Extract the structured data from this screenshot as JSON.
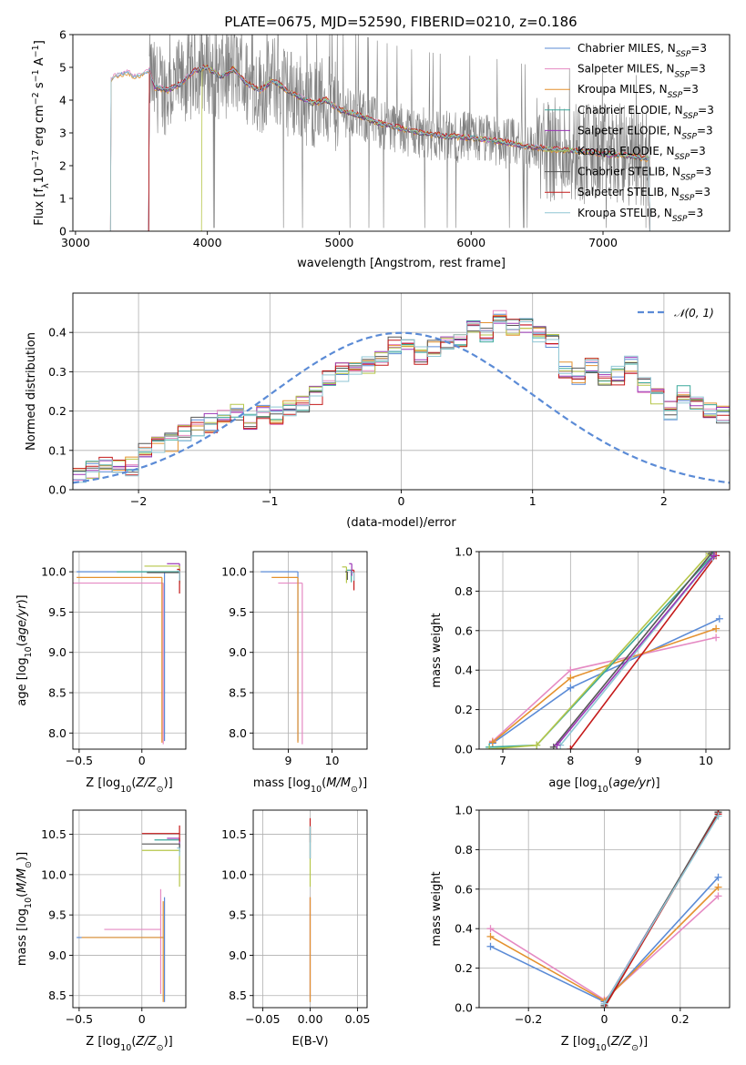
{
  "title": "PLATE=0675, MJD=52590, FIBERID=0210, z=0.186",
  "colors": {
    "chabrier_miles": "#5b8bd6",
    "salpeter_miles": "#e58ac3",
    "kroupa_miles": "#e4912e",
    "chabrier_elodie": "#3aa89b",
    "salpeter_elodie": "#9a35b5",
    "kroupa_elodie": "#b6c64a",
    "chabrier_stelib": "#555555",
    "salpeter_stelib": "#c41a1a",
    "kroupa_stelib": "#8fc6d4",
    "data": "#808080",
    "gaussian": "#5b8bd6",
    "grid": "#b0b0b0"
  },
  "chart_data": [
    {
      "type": "line",
      "name": "spectrum",
      "xlabel": "wavelength [Angstrom, rest frame]",
      "ylabel": "Flux [f_λ 10^-17 erg cm^-2 s^-1 A^-1]",
      "xlim": [
        2980,
        7960
      ],
      "ylim": [
        0,
        6
      ],
      "xticks": [
        3000,
        4000,
        5000,
        6000,
        7000
      ],
      "yticks": [
        0,
        1,
        2,
        3,
        4,
        5,
        6
      ],
      "grid": false,
      "legend_position": "right",
      "legend": [
        {
          "key": "chabrier_miles",
          "main": "Chabrier MILES, N",
          "sub": "SSP",
          "tail": "=3"
        },
        {
          "key": "salpeter_miles",
          "main": "Salpeter MILES, N",
          "sub": "SSP",
          "tail": "=3"
        },
        {
          "key": "kroupa_miles",
          "main": "Kroupa MILES, N",
          "sub": "SSP",
          "tail": "=3"
        },
        {
          "key": "chabrier_elodie",
          "main": "Chabrier ELODIE, N",
          "sub": "SSP",
          "tail": "=3"
        },
        {
          "key": "salpeter_elodie",
          "main": "Salpeter ELODIE, N",
          "sub": "SSP",
          "tail": "=3"
        },
        {
          "key": "kroupa_elodie",
          "main": "Kroupa ELODIE, N",
          "sub": "SSP",
          "tail": "=3"
        },
        {
          "key": "chabrier_stelib",
          "main": "Chabrier STELIB, N",
          "sub": "SSP",
          "tail": "=3"
        },
        {
          "key": "salpeter_stelib",
          "main": "Salpeter STELIB, N",
          "sub": "SSP",
          "tail": "=3"
        },
        {
          "key": "kroupa_stelib",
          "main": "Kroupa STELIB, N",
          "sub": "SSP",
          "tail": "=3"
        }
      ],
      "data_range": [
        3560,
        7360
      ],
      "model_starts": {
        "miles": 3270,
        "elodie": 3560,
        "stelib": 3960
      },
      "model_end": 7350,
      "continuum": {
        "x": [
          3270,
          3300,
          3350,
          3400,
          3450,
          3500,
          3560,
          3600,
          3700,
          3800,
          3900,
          4000,
          4100,
          4200,
          4300,
          4400,
          4500,
          4600,
          4700,
          4800,
          4900,
          5000,
          5100,
          5200,
          5300,
          5400,
          5500,
          5600,
          5700,
          5800,
          6000,
          6200,
          6400,
          6600,
          6800,
          7000,
          7200,
          7350
        ],
        "y": [
          4.6,
          4.75,
          4.8,
          4.85,
          4.7,
          4.8,
          4.9,
          4.4,
          4.3,
          4.5,
          4.9,
          5.0,
          4.7,
          4.95,
          4.5,
          4.3,
          4.6,
          4.3,
          4.1,
          3.9,
          4.0,
          3.7,
          3.6,
          3.45,
          3.3,
          3.2,
          3.1,
          3.0,
          2.95,
          2.9,
          2.85,
          2.75,
          2.6,
          2.5,
          2.45,
          2.35,
          2.3,
          2.2
        ]
      }
    },
    {
      "type": "bar",
      "name": "residual histogram",
      "xlabel": "(data-model)/error",
      "ylabel": "Normed distribution",
      "xlim": [
        -2.5,
        2.5
      ],
      "ylim": [
        0,
        0.5
      ],
      "xticks": [
        -2,
        -1,
        0,
        1,
        2
      ],
      "yticks": [
        0.0,
        0.1,
        0.2,
        0.3,
        0.4
      ],
      "grid": true,
      "legend": [
        {
          "name": "𝒩(0, 1)",
          "style": "dashed"
        }
      ],
      "bin_width": 0.1,
      "base": [
        0.03,
        0.05,
        0.06,
        0.055,
        0.06,
        0.1,
        0.11,
        0.12,
        0.14,
        0.16,
        0.17,
        0.18,
        0.2,
        0.17,
        0.2,
        0.19,
        0.21,
        0.22,
        0.24,
        0.28,
        0.3,
        0.3,
        0.32,
        0.34,
        0.37,
        0.36,
        0.34,
        0.36,
        0.37,
        0.38,
        0.42,
        0.4,
        0.44,
        0.41,
        0.42,
        0.4,
        0.38,
        0.3,
        0.29,
        0.31,
        0.28,
        0.29,
        0.32,
        0.26,
        0.24,
        0.2,
        0.24,
        0.23,
        0.2,
        0.19,
        0.15,
        0.12,
        0.1,
        0.11,
        0.09,
        0.1,
        0.09,
        0.09,
        0.08,
        0.07,
        0.08,
        0.09,
        0.08,
        0.05,
        0.05,
        0.05,
        0.04,
        0.05,
        0.04,
        0.04
      ],
      "gaussian": {
        "mu": 0,
        "sigma": 1
      }
    },
    {
      "type": "scatter",
      "name": "age vs metallicity",
      "xlabel": "Z [log10(Z/Z⊙)]",
      "ylabel": "age  [log10(age/yr)]",
      "xlim": [
        -0.55,
        0.35
      ],
      "ylim": [
        7.8,
        10.25
      ],
      "xticks": [
        -0.5,
        0.0
      ],
      "yticks": [
        8.0,
        8.5,
        9.0,
        9.5,
        10.0
      ],
      "grid": true,
      "points": [
        {
          "key": "chabrier_miles",
          "x": 0.18,
          "y": 10.0,
          "xerr": [
            0.7,
            0.0
          ],
          "yerr": [
            2.1,
            0.0
          ]
        },
        {
          "key": "salpeter_miles",
          "x": 0.17,
          "y": 9.86,
          "xerr": [
            0.72,
            0.0
          ],
          "yerr": [
            2.0,
            0.0
          ]
        },
        {
          "key": "kroupa_miles",
          "x": 0.16,
          "y": 9.93,
          "xerr": [
            0.68,
            0.0
          ],
          "yerr": [
            2.05,
            0.0
          ]
        },
        {
          "key": "chabrier_elodie",
          "x": 0.3,
          "y": 10.0,
          "xerr": [
            0.5,
            0.0
          ],
          "yerr": [
            0.15,
            0.0
          ]
        },
        {
          "key": "salpeter_elodie",
          "x": 0.3,
          "y": 10.1,
          "xerr": [
            0.1,
            0.0
          ],
          "yerr": [
            0.18,
            0.0
          ]
        },
        {
          "key": "kroupa_elodie",
          "x": 0.3,
          "y": 10.07,
          "xerr": [
            0.28,
            0.0
          ],
          "yerr": [
            0.2,
            0.0
          ]
        },
        {
          "key": "chabrier_stelib",
          "x": 0.3,
          "y": 9.99,
          "xerr": [
            0.26,
            0.0
          ],
          "yerr": [
            0.1,
            0.0
          ]
        },
        {
          "key": "salpeter_stelib",
          "x": 0.3,
          "y": 10.03,
          "xerr": [
            0.02,
            0.0
          ],
          "yerr": [
            0.3,
            0.0
          ]
        },
        {
          "key": "kroupa_stelib",
          "x": 0.3,
          "y": 10.01,
          "xerr": [
            0.02,
            0.0
          ],
          "yerr": [
            0.12,
            0.0
          ]
        }
      ]
    },
    {
      "type": "scatter",
      "name": "age vs stellar mass",
      "xlabel": "mass [log10(M/M⊙)]",
      "ylabel": "",
      "xlim": [
        8.2,
        10.8
      ],
      "ylim": [
        7.8,
        10.25
      ],
      "xticks": [
        9,
        10
      ],
      "yticks": [
        8.0,
        8.5,
        9.0,
        9.5,
        10.0
      ],
      "grid": true,
      "points": [
        {
          "key": "chabrier_miles",
          "x": 9.22,
          "y": 10.0,
          "xerr": [
            0.85,
            0.0
          ],
          "yerr": [
            2.1,
            0.0
          ]
        },
        {
          "key": "salpeter_miles",
          "x": 9.32,
          "y": 9.86,
          "xerr": [
            0.55,
            0.0
          ],
          "yerr": [
            2.0,
            0.0
          ]
        },
        {
          "key": "kroupa_miles",
          "x": 9.22,
          "y": 9.93,
          "xerr": [
            0.6,
            0.0
          ],
          "yerr": [
            2.05,
            0.0
          ]
        },
        {
          "key": "chabrier_elodie",
          "x": 10.44,
          "y": 10.02,
          "xerr": [
            0.1,
            0.0
          ],
          "yerr": [
            0.15,
            0.0
          ]
        },
        {
          "key": "salpeter_elodie",
          "x": 10.45,
          "y": 10.1,
          "xerr": [
            0.06,
            0.0
          ],
          "yerr": [
            0.15,
            0.0
          ]
        },
        {
          "key": "kroupa_elodie",
          "x": 10.33,
          "y": 10.06,
          "xerr": [
            0.1,
            0.0
          ],
          "yerr": [
            0.2,
            0.0
          ]
        },
        {
          "key": "chabrier_stelib",
          "x": 10.35,
          "y": 10.0,
          "xerr": [
            0.05,
            0.0
          ],
          "yerr": [
            0.1,
            0.0
          ]
        },
        {
          "key": "salpeter_stelib",
          "x": 10.5,
          "y": 10.02,
          "xerr": [
            0.04,
            0.0
          ],
          "yerr": [
            0.25,
            0.0
          ]
        },
        {
          "key": "kroupa_stelib",
          "x": 10.5,
          "y": 9.99,
          "xerr": [
            0.05,
            0.0
          ],
          "yerr": [
            0.1,
            0.0
          ]
        }
      ]
    },
    {
      "type": "line",
      "name": "mass weight vs age",
      "xlabel": "age  [log10(age/yr)]",
      "ylabel": "mass weight",
      "xlim": [
        6.65,
        10.35
      ],
      "ylim": [
        0,
        1.0
      ],
      "xticks": [
        7,
        8,
        9,
        10
      ],
      "yticks": [
        0.0,
        0.2,
        0.4,
        0.6,
        0.8,
        1.0
      ],
      "grid": true,
      "series": [
        {
          "key": "chabrier_miles",
          "x": [
            6.85,
            8.0,
            10.2
          ],
          "y": [
            0.03,
            0.31,
            0.66
          ]
        },
        {
          "key": "salpeter_miles",
          "x": [
            6.85,
            8.0,
            10.15
          ],
          "y": [
            0.04,
            0.4,
            0.565
          ]
        },
        {
          "key": "kroupa_miles",
          "x": [
            6.85,
            8.0,
            10.15
          ],
          "y": [
            0.035,
            0.36,
            0.61
          ]
        },
        {
          "key": "chabrier_elodie",
          "x": [
            6.8,
            7.5,
            10.1
          ],
          "y": [
            0.01,
            0.02,
            0.98
          ]
        },
        {
          "key": "kroupa_elodie",
          "x": [
            6.8,
            7.5,
            10.05
          ],
          "y": [
            0.0,
            0.02,
            0.99
          ]
        },
        {
          "key": "chabrier_stelib",
          "x": [
            7.75,
            10.08
          ],
          "y": [
            0.01,
            0.99
          ]
        },
        {
          "key": "salpeter_stelib",
          "x": [
            8.0,
            10.15
          ],
          "y": [
            0.0,
            0.98
          ]
        },
        {
          "key": "kroupa_stelib",
          "x": [
            7.85,
            10.1
          ],
          "y": [
            0.02,
            0.97
          ]
        },
        {
          "key": "salpeter_elodie",
          "x": [
            7.8,
            10.12
          ],
          "y": [
            0.02,
            0.98
          ]
        }
      ]
    },
    {
      "type": "scatter",
      "name": "mass vs metallicity",
      "xlabel": "Z [log10(Z/Z⊙)]",
      "ylabel": "mass [log10(M/M⊙)]",
      "xlim": [
        -0.55,
        0.35
      ],
      "ylim": [
        8.35,
        10.8
      ],
      "xticks": [
        -0.5,
        0.0
      ],
      "yticks": [
        8.5,
        9.0,
        9.5,
        10.0,
        10.5
      ],
      "grid": true,
      "points": [
        {
          "key": "chabrier_miles",
          "x": 0.18,
          "y": 9.22,
          "xerr": [
            0.7,
            0.0
          ],
          "yerr": [
            0.8,
            0.5
          ]
        },
        {
          "key": "salpeter_miles",
          "x": 0.15,
          "y": 9.32,
          "xerr": [
            0.45,
            0.0
          ],
          "yerr": [
            0.8,
            0.5
          ]
        },
        {
          "key": "kroupa_miles",
          "x": 0.17,
          "y": 9.22,
          "xerr": [
            0.65,
            0.0
          ],
          "yerr": [
            0.8,
            0.45
          ]
        },
        {
          "key": "chabrier_elodie",
          "x": 0.3,
          "y": 10.43,
          "xerr": [
            0.2,
            0.0
          ],
          "yerr": [
            0.1,
            0.0
          ]
        },
        {
          "key": "salpeter_elodie",
          "x": 0.3,
          "y": 10.45,
          "xerr": [
            0.1,
            0.0
          ],
          "yerr": [
            0.1,
            0.0
          ]
        },
        {
          "key": "kroupa_elodie",
          "x": 0.3,
          "y": 10.3,
          "xerr": [
            0.3,
            0.0
          ],
          "yerr": [
            0.45,
            0.0
          ]
        },
        {
          "key": "chabrier_stelib",
          "x": 0.3,
          "y": 10.38,
          "xerr": [
            0.3,
            0.0
          ],
          "yerr": [
            0.1,
            0.0
          ]
        },
        {
          "key": "salpeter_stelib",
          "x": 0.3,
          "y": 10.51,
          "xerr": [
            0.3,
            0.0
          ],
          "yerr": [
            0.1,
            0.1
          ]
        },
        {
          "key": "kroupa_stelib",
          "x": 0.3,
          "y": 10.33,
          "xerr": [
            0.02,
            0.0
          ],
          "yerr": [
            0.1,
            0.0
          ]
        }
      ]
    },
    {
      "type": "scatter",
      "name": "mass vs reddening",
      "xlabel": "E(B-V)",
      "ylabel": "",
      "xlim": [
        -0.06,
        0.06
      ],
      "ylim": [
        8.35,
        10.8
      ],
      "xticks": [
        -0.05,
        0.0,
        0.05
      ],
      "yticks": [
        8.5,
        9.0,
        9.5,
        10.0,
        10.5
      ],
      "grid": true,
      "points": [
        {
          "key": "chabrier_miles",
          "x": 0.0,
          "y": 9.22,
          "yerr": [
            0.8,
            0.5
          ]
        },
        {
          "key": "salpeter_miles",
          "x": 0.0,
          "y": 9.32,
          "yerr": [
            0.85,
            0.4
          ]
        },
        {
          "key": "kroupa_miles",
          "x": 0.0,
          "y": 9.22,
          "yerr": [
            0.8,
            0.5
          ]
        },
        {
          "key": "kroupa_elodie",
          "x": 0.0,
          "y": 10.3,
          "yerr": [
            0.45,
            0.3
          ]
        },
        {
          "key": "chabrier_stelib",
          "x": 0.0,
          "y": 10.4,
          "yerr": [
            0.2,
            0.2
          ]
        },
        {
          "key": "salpeter_stelib",
          "x": 0.0,
          "y": 10.5,
          "yerr": [
            0.1,
            0.2
          ]
        },
        {
          "key": "kroupa_stelib",
          "x": 0.0,
          "y": 10.3,
          "yerr": [
            0.1,
            0.3
          ]
        }
      ]
    },
    {
      "type": "line",
      "name": "mass weight vs metallicity",
      "xlabel": "Z [log10(Z/Z⊙)]",
      "ylabel": "mass weight",
      "xlim": [
        -0.33,
        0.33
      ],
      "ylim": [
        0,
        1.0
      ],
      "xticks": [
        -0.2,
        0.0,
        0.2
      ],
      "yticks": [
        0.0,
        0.2,
        0.4,
        0.6,
        0.8,
        1.0
      ],
      "grid": true,
      "series": [
        {
          "key": "chabrier_miles",
          "x": [
            -0.3,
            0.0,
            0.3
          ],
          "y": [
            0.31,
            0.03,
            0.66
          ]
        },
        {
          "key": "salpeter_miles",
          "x": [
            -0.3,
            0.0,
            0.3
          ],
          "y": [
            0.4,
            0.04,
            0.565
          ]
        },
        {
          "key": "kroupa_miles",
          "x": [
            -0.3,
            0.0,
            0.3
          ],
          "y": [
            0.36,
            0.035,
            0.61
          ]
        },
        {
          "key": "chabrier_elodie",
          "x": [
            0.0,
            0.3
          ],
          "y": [
            0.02,
            0.98
          ]
        },
        {
          "key": "salpeter_elodie",
          "x": [
            0.0,
            0.3
          ],
          "y": [
            0.02,
            0.98
          ]
        },
        {
          "key": "kroupa_elodie",
          "x": [
            0.0,
            0.3
          ],
          "y": [
            0.0,
            0.99
          ]
        },
        {
          "key": "chabrier_stelib",
          "x": [
            0.0,
            0.3
          ],
          "y": [
            0.01,
            0.99
          ]
        },
        {
          "key": "salpeter_stelib",
          "x": [
            0.0,
            0.3
          ],
          "y": [
            0.0,
            0.98
          ]
        },
        {
          "key": "kroupa_stelib",
          "x": [
            0.0,
            0.3
          ],
          "y": [
            0.02,
            0.97
          ]
        }
      ]
    }
  ]
}
